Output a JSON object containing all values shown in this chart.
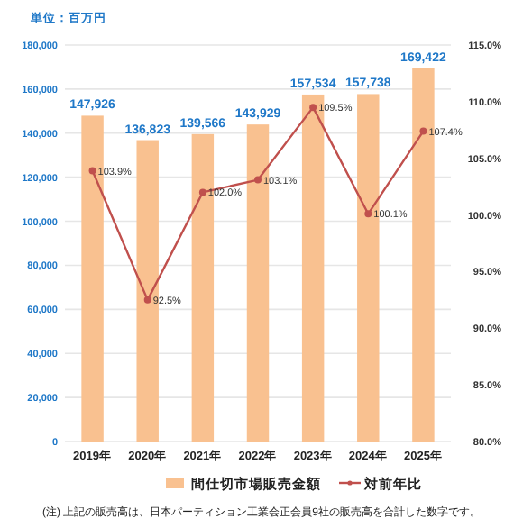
{
  "chart_data": {
    "type": "bar",
    "subtitle": "単位：百万円",
    "categories": [
      "2019年",
      "2020年",
      "2021年",
      "2022年",
      "2023年",
      "2024年",
      "2025年"
    ],
    "series": [
      {
        "name": "間仕切市場販売金額",
        "color": "#f9c190",
        "values": [
          147926,
          136823,
          139566,
          143929,
          157534,
          157738,
          169422
        ],
        "value_labels": [
          "147,926",
          "136,823",
          "139,566",
          "143,929",
          "157,534",
          "157,738",
          "169,422"
        ]
      },
      {
        "name": "対前年比",
        "type": "line",
        "axis": "y2",
        "color": "#c0504d",
        "marker": "circle",
        "values": [
          103.9,
          92.5,
          102.0,
          103.1,
          109.5,
          100.1,
          107.4
        ],
        "value_labels": [
          "103.9%",
          "92.5%",
          "102.0%",
          "103.1%",
          "109.5%",
          "100.1%",
          "107.4%"
        ]
      }
    ],
    "ylim": [
      0,
      180000
    ],
    "yticks": [
      {
        "value": 0,
        "label": "0"
      },
      {
        "value": 20000,
        "label": "20,000"
      },
      {
        "value": 40000,
        "label": "40,000"
      },
      {
        "value": 60000,
        "label": "60,000"
      },
      {
        "value": 80000,
        "label": "80,000"
      },
      {
        "value": 100000,
        "label": "100,000"
      },
      {
        "value": 120000,
        "label": "120,000"
      },
      {
        "value": 140000,
        "label": "140,000"
      },
      {
        "value": 160000,
        "label": "160,000"
      },
      {
        "value": 180000,
        "label": "180,000"
      }
    ],
    "y2lim": [
      80,
      115
    ],
    "y2ticks": [
      {
        "value": 80,
        "label": "80.0%"
      },
      {
        "value": 85,
        "label": "85.0%"
      },
      {
        "value": 90,
        "label": "90.0%"
      },
      {
        "value": 95,
        "label": "95.0%"
      },
      {
        "value": 100,
        "label": "100.0%"
      },
      {
        "value": 105,
        "label": "105.0%"
      },
      {
        "value": 110,
        "label": "110.0%"
      },
      {
        "value": 115,
        "label": "115.0%"
      }
    ],
    "grid": "y",
    "legend": "bottom",
    "annotations": [
      "(注) 上記の販売高は、日本パーティション工業会正会員9社の販売高を合計した数字です。"
    ]
  }
}
